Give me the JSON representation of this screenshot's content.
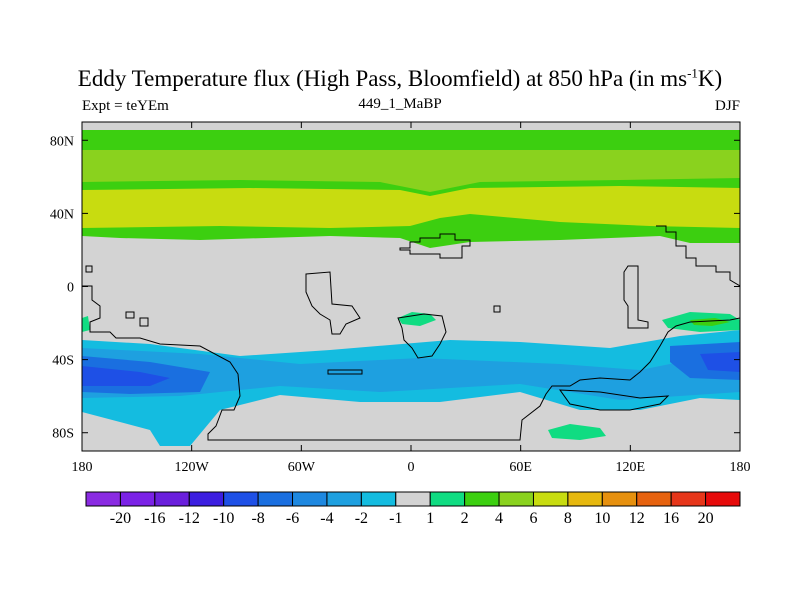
{
  "title": {
    "main": "Eddy Temperature flux (High Pass, Bloomfield) at 850 hPa (in ms",
    "superscript": "-1",
    "tail": "K)"
  },
  "subtitle": {
    "left": "Expt = teYEm",
    "center": "449_1_MaBP",
    "right": "DJF"
  },
  "colors": {
    "neutral": "#d3d3d3",
    "land_outline": "#000000"
  },
  "chart_data": {
    "type": "heatmap",
    "title": "Eddy Temperature flux (High Pass, Bloomfield) at 850 hPa (in ms-1K)",
    "x_range": [
      -180,
      180
    ],
    "y_range": [
      -90,
      90
    ],
    "x_ticks": [
      {
        "value": -180,
        "label": "180"
      },
      {
        "value": -120,
        "label": "120W"
      },
      {
        "value": -60,
        "label": "60W"
      },
      {
        "value": 0,
        "label": "0"
      },
      {
        "value": 60,
        "label": "60E"
      },
      {
        "value": 120,
        "label": "120E"
      },
      {
        "value": 180,
        "label": "180"
      }
    ],
    "y_ticks": [
      {
        "value": 80,
        "label": "80N"
      },
      {
        "value": 40,
        "label": "40N"
      },
      {
        "value": 0,
        "label": "0"
      },
      {
        "value": -40,
        "label": "40S"
      },
      {
        "value": -80,
        "label": "80S"
      }
    ],
    "colorbar": {
      "labels": [
        "-20",
        "-16",
        "-12",
        "-10",
        "-8",
        "-6",
        "-4",
        "-2",
        "-1",
        "1",
        "2",
        "4",
        "6",
        "8",
        "10",
        "12",
        "16",
        "20"
      ],
      "colors": [
        "#8a2be2",
        "#7b22e6",
        "#6a1fdc",
        "#3c1ee0",
        "#1e50e6",
        "#1a6fe0",
        "#1e88e0",
        "#1ea0e0",
        "#14bce0",
        "#d3d3d3",
        "#10dc82",
        "#3ccf10",
        "#8ad21e",
        "#c8dc10",
        "#e6b80e",
        "#e6900e",
        "#e6620e",
        "#e6361a",
        "#e60a0a"
      ]
    },
    "regions": [
      {
        "name": "nh-band-outer",
        "level": "2",
        "lon": [
          -180,
          180
        ],
        "lat": [
          84,
          26
        ]
      },
      {
        "name": "nh-band-60N",
        "level": "6",
        "lon": [
          -180,
          180
        ],
        "lat": [
          73,
          57
        ]
      },
      {
        "name": "nh-band-40N",
        "level": "8",
        "lon": [
          -180,
          180
        ],
        "lat": [
          52,
          30
        ]
      },
      {
        "name": "sh-storm-track",
        "level": "-2",
        "lon": [
          -180,
          180
        ],
        "lat": [
          -30,
          -72
        ]
      },
      {
        "name": "sh-pacific-core",
        "level": "-8",
        "lon": [
          -180,
          -130
        ],
        "lat": [
          -42,
          -58
        ]
      },
      {
        "name": "sh-indian-core",
        "level": "-6",
        "lon": [
          140,
          180
        ],
        "lat": [
          -36,
          -52
        ]
      },
      {
        "name": "s-atlantic-cell",
        "level": "1",
        "lon": [
          -5,
          15
        ],
        "lat": [
          -18,
          -24
        ]
      },
      {
        "name": "s-pacific-cell",
        "level": "1",
        "lon": [
          140,
          175
        ],
        "lat": [
          -20,
          -28
        ]
      },
      {
        "name": "antarctic-cell",
        "level": "1",
        "lon": [
          75,
          105
        ],
        "lat": [
          -78,
          -86
        ]
      }
    ]
  },
  "colorbar_ticks": [
    "-20",
    "-16",
    "-12",
    "-10",
    "-8",
    "-6",
    "-4",
    "-2",
    "-1",
    "1",
    "2",
    "4",
    "6",
    "8",
    "10",
    "12",
    "16",
    "20"
  ]
}
